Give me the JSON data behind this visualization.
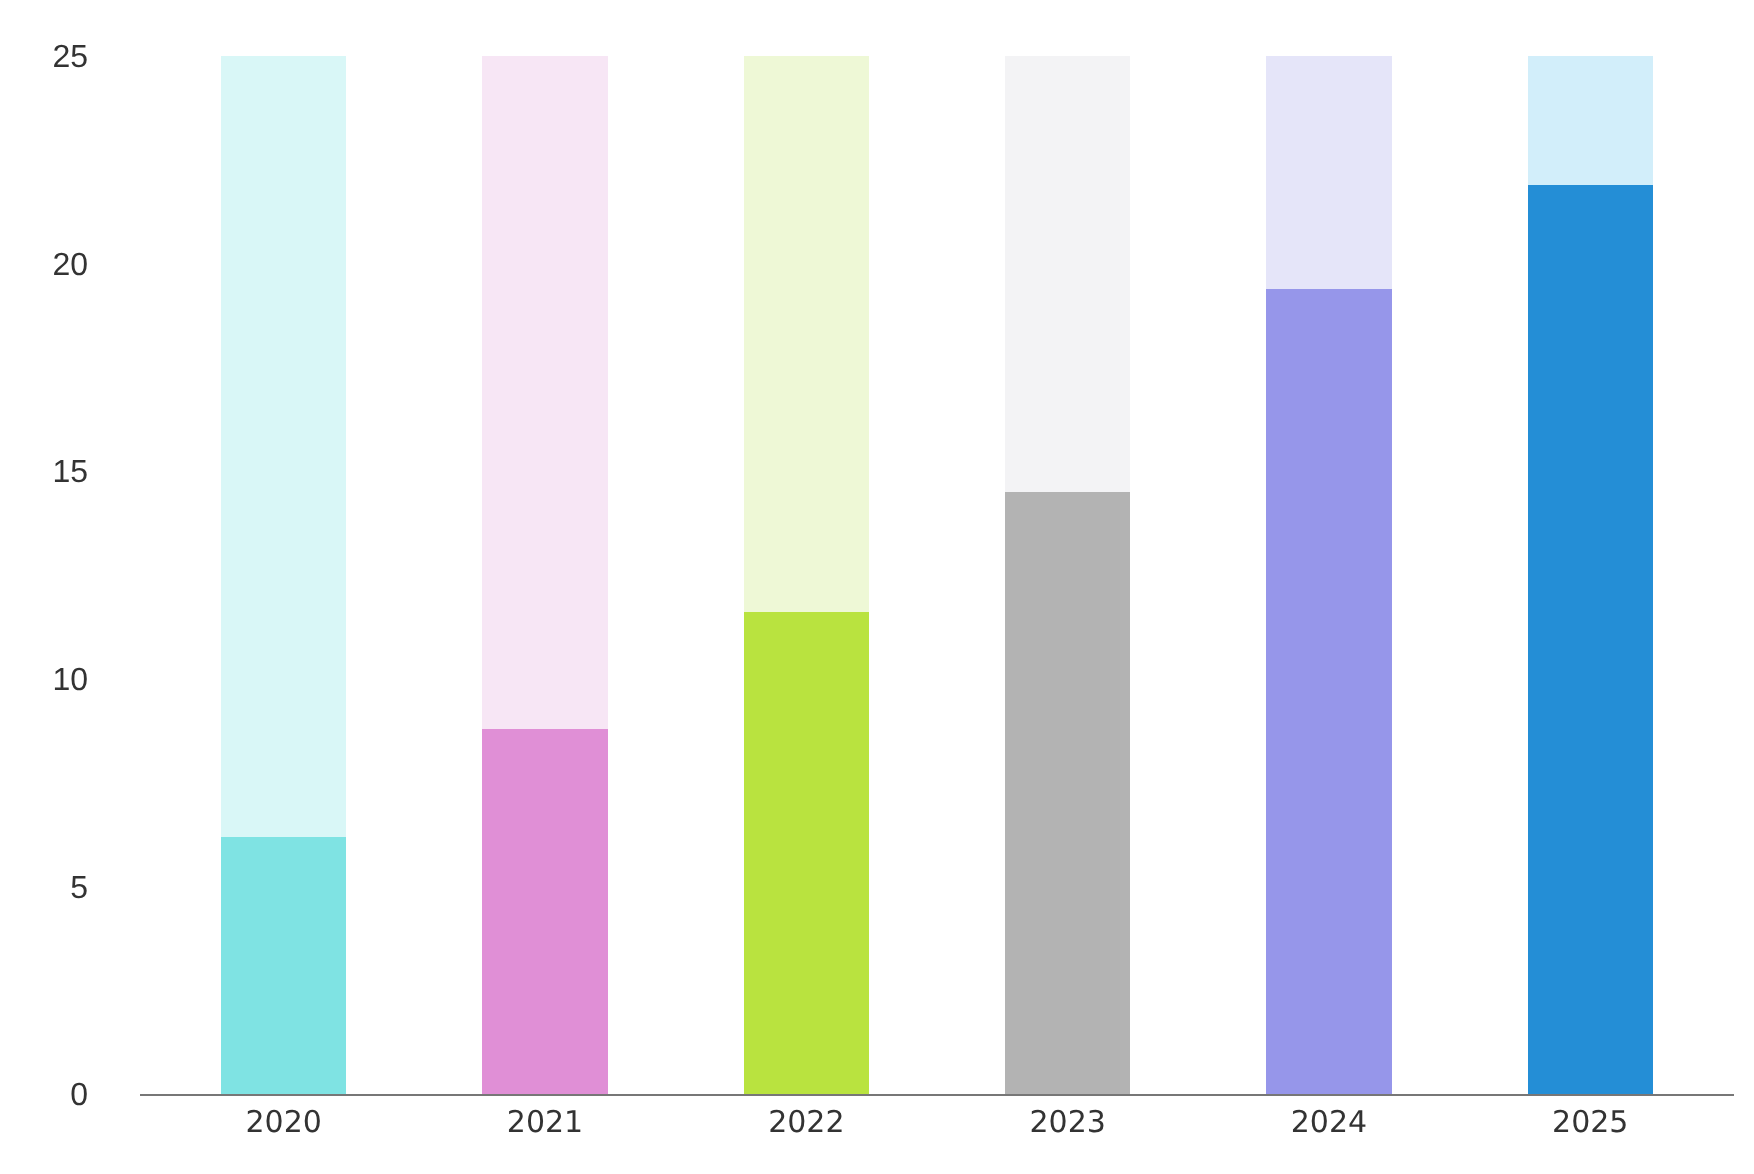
{
  "chart_data": {
    "type": "bar",
    "stacked": true,
    "categories": [
      "2020",
      "2021",
      "2022",
      "2023",
      "2024",
      "2025"
    ],
    "series": [
      {
        "colors": [
          "#7fe3e3",
          "#e08fd6",
          "#b9e33f",
          "#b3b3b3",
          "#9696ea",
          "#248ed6"
        ],
        "values": [
          6.2,
          8.8,
          11.6,
          14.5,
          19.4,
          21.9
        ]
      },
      {
        "colors": [
          "#d9f7f7",
          "#f7e6f5",
          "#eef8d6",
          "#f3f3f5",
          "#e5e5f9",
          "#d2eefa"
        ],
        "values": [
          18.8,
          16.2,
          13.4,
          10.5,
          5.6,
          3.1
        ]
      }
    ],
    "ylim": [
      0,
      25
    ],
    "yticks": [
      0,
      5,
      10,
      15,
      20,
      25
    ]
  }
}
